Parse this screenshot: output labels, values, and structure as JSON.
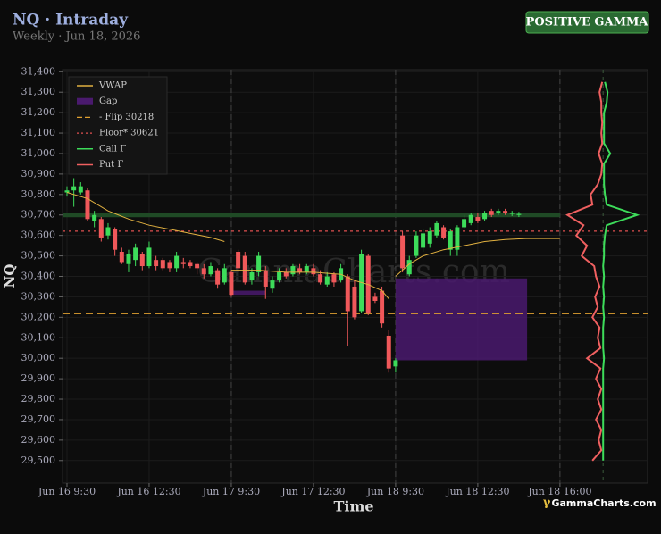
{
  "chart_data": {
    "type": "candlestick",
    "title": "NQ · Intraday",
    "subtitle": "Weekly · Jun 18, 2026",
    "badge": "POSITIVE GAMMA",
    "x_label": "Time",
    "y_label": "NQ",
    "watermark": "GammaCharts.com",
    "logo_mark": "γ",
    "logo": "GammaCharts.com",
    "grid": true,
    "xlim": [
      -0.65,
      84.8
    ],
    "xticks": [
      {
        "value": 0,
        "label": "Jun 16 9:30"
      },
      {
        "value": 12,
        "label": "Jun 16 12:30"
      },
      {
        "value": 24,
        "label": "Jun 17 9:30"
      },
      {
        "value": 36,
        "label": "Jun 17 12:30"
      },
      {
        "value": 48,
        "label": "Jun 18 9:30"
      },
      {
        "value": 60,
        "label": "Jun 18 12:30"
      },
      {
        "value": 72,
        "label": "Jun 18 16:00"
      }
    ],
    "session_breaks": [
      24,
      48,
      72
    ],
    "ylim": [
      29390,
      31410
    ],
    "yticks": [
      {
        "value": 29500,
        "label": "29,500"
      },
      {
        "value": 29600,
        "label": "29,600"
      },
      {
        "value": 29700,
        "label": "29,700"
      },
      {
        "value": 29800,
        "label": "29,800"
      },
      {
        "value": 29900,
        "label": "29,900"
      },
      {
        "value": 30000,
        "label": "30,000"
      },
      {
        "value": 30100,
        "label": "30,100"
      },
      {
        "value": 30200,
        "label": "30,200"
      },
      {
        "value": 30300,
        "label": "30,300"
      },
      {
        "value": 30400,
        "label": "30,400"
      },
      {
        "value": 30500,
        "label": "30,500"
      },
      {
        "value": 30600,
        "label": "30,600"
      },
      {
        "value": 30700,
        "label": "30,700"
      },
      {
        "value": 30800,
        "label": "30,800"
      },
      {
        "value": 30900,
        "label": "30,900"
      },
      {
        "value": 31000,
        "label": "31,000"
      },
      {
        "value": 31100,
        "label": "31,100"
      },
      {
        "value": 31200,
        "label": "31,200"
      },
      {
        "value": 31300,
        "label": "31,300"
      },
      {
        "value": 31400,
        "label": "31,400"
      }
    ],
    "candles": {
      "up_color": "#3ddc5a",
      "down_color": "#f0585a",
      "x": [
        0,
        1,
        2,
        3,
        4,
        5,
        6,
        7,
        8,
        9,
        10,
        11,
        12,
        13,
        14,
        15,
        16,
        17,
        18,
        19,
        20,
        21,
        22,
        23,
        24,
        25,
        26,
        27,
        28,
        29,
        30,
        31,
        32,
        33,
        34,
        35,
        36,
        37,
        38,
        39,
        40,
        41,
        42,
        43,
        44,
        45,
        46,
        47,
        48,
        49,
        50,
        51,
        52,
        53,
        54,
        55,
        56,
        57,
        58,
        59,
        60,
        61,
        62,
        63,
        64,
        65,
        66
      ],
      "open": [
        30810,
        30820,
        30810,
        30820,
        30670,
        30680,
        30600,
        30630,
        30520,
        30460,
        30480,
        30510,
        30450,
        30480,
        30480,
        30470,
        30440,
        30470,
        30470,
        30460,
        30440,
        30410,
        30430,
        30370,
        30420,
        30520,
        30500,
        30380,
        30420,
        30430,
        30340,
        30380,
        30420,
        30410,
        30440,
        30420,
        30440,
        30410,
        30360,
        30410,
        30380,
        30400,
        30350,
        30230,
        30500,
        30300,
        30330,
        30110,
        29960,
        30600,
        30410,
        30500,
        30540,
        30560,
        30600,
        30640,
        30530,
        30530,
        30640,
        30660,
        30690,
        30680,
        30720,
        30710,
        30720,
        30705,
        30700
      ],
      "high": [
        30840,
        30880,
        30860,
        30830,
        30720,
        30690,
        30660,
        30640,
        30540,
        30530,
        30560,
        30520,
        30570,
        30500,
        30490,
        30480,
        30520,
        30490,
        30480,
        30470,
        30460,
        30470,
        30440,
        30460,
        30430,
        30530,
        30520,
        30440,
        30520,
        30450,
        30400,
        30440,
        30440,
        30460,
        30460,
        30460,
        30460,
        30430,
        30420,
        30420,
        30460,
        30410,
        30380,
        30530,
        30510,
        30320,
        30350,
        30140,
        30000,
        30620,
        30500,
        30620,
        30630,
        30640,
        30670,
        30650,
        30630,
        30650,
        30700,
        30710,
        30710,
        30720,
        30730,
        30730,
        30730,
        30720,
        30715
      ],
      "low": [
        30790,
        30740,
        30800,
        30670,
        30640,
        30570,
        30580,
        30500,
        30460,
        30420,
        30450,
        30430,
        30440,
        30430,
        30430,
        30420,
        30420,
        30440,
        30440,
        30410,
        30390,
        30400,
        30340,
        30360,
        30300,
        30420,
        30360,
        30360,
        30400,
        30290,
        30320,
        30370,
        30390,
        30400,
        30410,
        30410,
        30400,
        30360,
        30350,
        30350,
        30370,
        30060,
        30190,
        30220,
        30210,
        30270,
        30150,
        29930,
        29930,
        30420,
        30400,
        30490,
        30520,
        30540,
        30590,
        30580,
        30500,
        30500,
        30630,
        30650,
        30660,
        30670,
        30690,
        30700,
        30700,
        30695,
        30690
      ],
      "close": [
        30820,
        30840,
        30840,
        30680,
        30700,
        30590,
        30640,
        30530,
        30470,
        30510,
        30540,
        30450,
        30540,
        30450,
        30440,
        30440,
        30500,
        30460,
        30450,
        30440,
        30410,
        30450,
        30360,
        30440,
        30310,
        30440,
        30370,
        30420,
        30500,
        30350,
        30380,
        30420,
        30400,
        30450,
        30420,
        30450,
        30410,
        30370,
        30400,
        30370,
        30440,
        30230,
        30200,
        30510,
        30220,
        30280,
        30170,
        29950,
        29990,
        30440,
        30480,
        30600,
        30610,
        30620,
        30660,
        30590,
        30620,
        30640,
        30680,
        30700,
        30670,
        30710,
        30700,
        30720,
        30710,
        30710,
        30705
      ]
    },
    "vwap": {
      "name": "VWAP",
      "color": "#e0b040",
      "x": [
        0,
        3,
        6,
        9,
        12,
        15,
        18,
        21,
        23,
        23.5,
        24,
        28,
        32,
        36,
        40,
        42,
        44,
        46,
        47,
        47.5,
        48,
        50,
        52,
        55,
        58,
        61,
        64,
        67,
        72
      ],
      "values": [
        30810,
        30780,
        30720,
        30680,
        30650,
        30630,
        30610,
        30590,
        30570,
        null,
        30430,
        30430,
        30420,
        30420,
        30410,
        30380,
        30360,
        30330,
        30290,
        null,
        30400,
        30460,
        30500,
        30530,
        30550,
        30570,
        30580,
        30585,
        30585
      ]
    },
    "gaps": {
      "name": "Gap",
      "color": "#4a1a6e",
      "boxes": [
        {
          "x0": 24,
          "x1": 29,
          "y0": 30310,
          "y1": 30330
        },
        {
          "x0": 48,
          "x1": 67.2,
          "y0": 29990,
          "y1": 30390
        }
      ]
    },
    "flip": {
      "name": "- Flip 30218",
      "value": 30218,
      "color": "#e0a030"
    },
    "floor": {
      "name": "Floor* 30621",
      "value": 30621,
      "color": "#e05050"
    },
    "band": {
      "value": 30700,
      "color": "#1f4a25"
    },
    "gamma_profile": {
      "x": 78.3,
      "strikes": [
        29500,
        29550,
        29600,
        29650,
        29700,
        29750,
        29800,
        29850,
        29900,
        29950,
        30000,
        30050,
        30100,
        30150,
        30200,
        30250,
        30300,
        30350,
        30400,
        30450,
        30500,
        30550,
        30600,
        30650,
        30700,
        30750,
        30800,
        30850,
        30900,
        30950,
        31000,
        31050,
        31100,
        31150,
        31200,
        31250,
        31300,
        31350
      ],
      "call": {
        "name": "Call Γ",
        "color": "#3ddc5a",
        "values": [
          0,
          0,
          0,
          0,
          0,
          0,
          0,
          0,
          0,
          0,
          1,
          0,
          0,
          0,
          1,
          0,
          1,
          0,
          1,
          0,
          1,
          1,
          2,
          4,
          38,
          4,
          2,
          1,
          1,
          1,
          8,
          1,
          1,
          1,
          1,
          4,
          5,
          2
        ]
      },
      "put": {
        "name": "Put Γ",
        "color": "#f06060",
        "values": [
          12,
          2,
          5,
          2,
          8,
          2,
          6,
          2,
          8,
          3,
          18,
          3,
          6,
          4,
          12,
          6,
          9,
          4,
          8,
          10,
          24,
          18,
          30,
          22,
          40,
          12,
          14,
          6,
          2,
          1,
          5,
          1,
          2,
          1,
          2,
          2,
          4,
          1
        ]
      }
    }
  }
}
